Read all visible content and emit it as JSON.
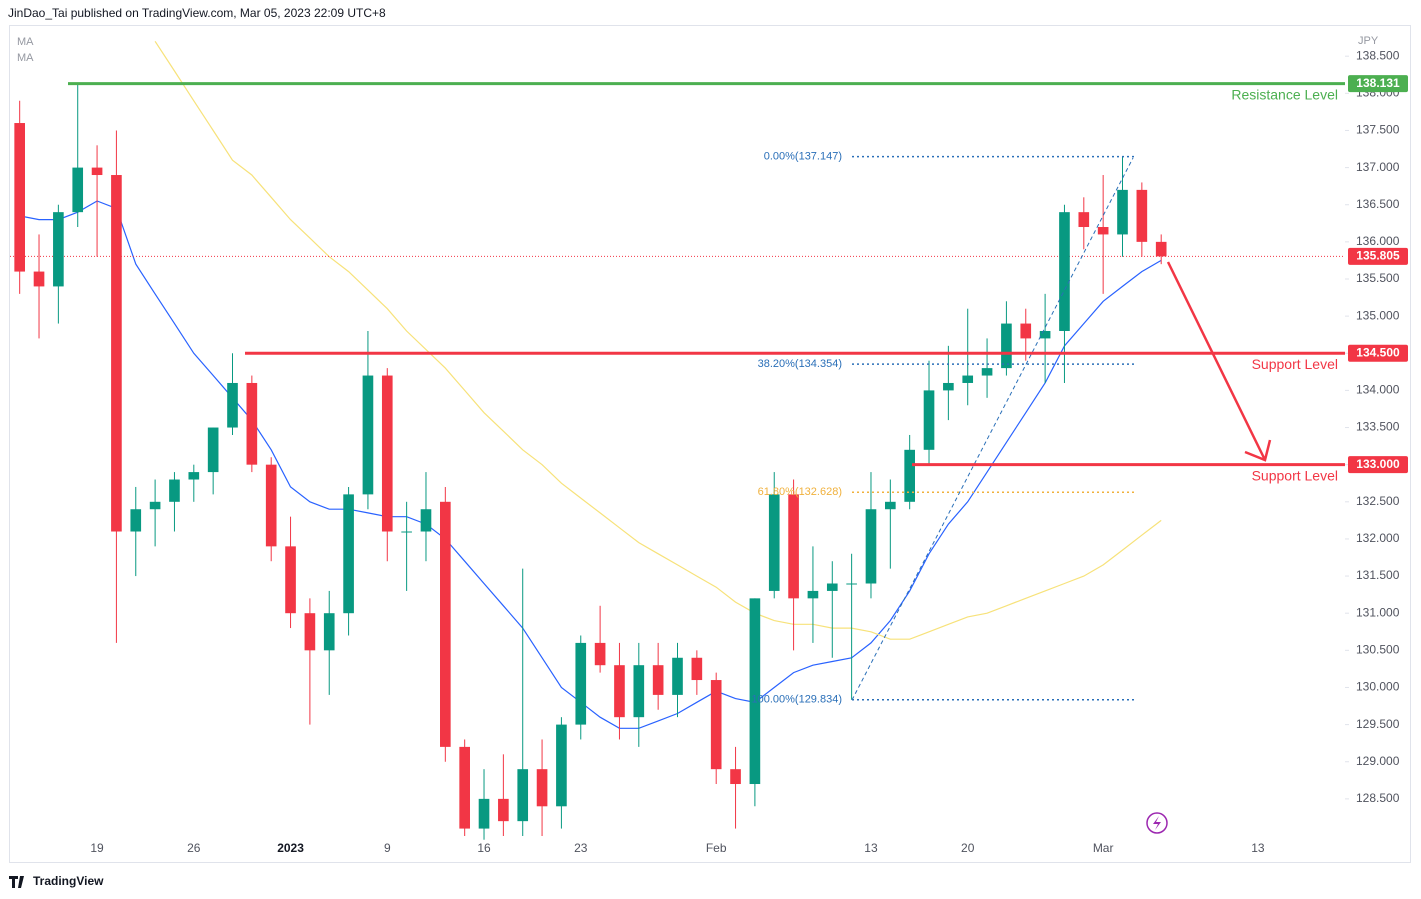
{
  "header": "JinDao_Tai published on TradingView.com, Mar 05, 2023 22:09 UTC+8",
  "brand": "TradingView",
  "chart_data": {
    "type": "candlestick",
    "currency": "JPY",
    "categories": [
      null,
      null,
      null,
      null,
      "19",
      null,
      null,
      null,
      null,
      "26",
      null,
      null,
      null,
      null,
      "2023",
      null,
      null,
      null,
      null,
      "9",
      null,
      null,
      null,
      null,
      "16",
      null,
      null,
      null,
      null,
      "23",
      null,
      null,
      null,
      null,
      null,
      null,
      "Feb",
      null,
      null,
      null,
      null,
      null,
      null,
      null,
      "13",
      null,
      null,
      null,
      null,
      "20",
      null,
      null,
      null,
      null,
      null,
      null,
      "Mar",
      null,
      null,
      null,
      null,
      null,
      null,
      null,
      "13",
      null,
      null,
      null,
      null
    ],
    "open": [
      137.6,
      135.6,
      135.4,
      136.4,
      137.0,
      136.9,
      132.1,
      132.4,
      132.5,
      132.8,
      132.9,
      133.5,
      134.1,
      133.0,
      131.9,
      131.0,
      130.5,
      131.0,
      132.6,
      134.2,
      132.1,
      132.1,
      132.5,
      129.2,
      128.1,
      128.5,
      128.2,
      128.9,
      128.4,
      129.5,
      130.6,
      130.3,
      129.6,
      130.3,
      129.9,
      130.4,
      130.1,
      128.9,
      128.7,
      131.3,
      132.6,
      131.2,
      131.3,
      131.4,
      131.4,
      132.4,
      132.5,
      133.2,
      134.0,
      134.1,
      134.2,
      134.3,
      134.9,
      134.7,
      134.8,
      136.4,
      136.2,
      136.1,
      136.7,
      136.0,
      null,
      null,
      null,
      null,
      null,
      null,
      null,
      null,
      null
    ],
    "high": [
      137.9,
      136.1,
      136.5,
      138.131,
      137.3,
      137.5,
      132.7,
      132.8,
      132.9,
      133.0,
      133.5,
      134.5,
      134.2,
      133.1,
      132.3,
      131.2,
      131.3,
      132.7,
      134.8,
      134.3,
      132.5,
      132.9,
      132.7,
      129.3,
      128.9,
      129.1,
      131.6,
      129.3,
      129.6,
      130.7,
      131.1,
      130.6,
      130.6,
      130.6,
      130.6,
      130.5,
      130.2,
      129.2,
      131.2,
      132.9,
      132.8,
      131.9,
      131.7,
      131.8,
      132.9,
      132.8,
      133.4,
      134.4,
      134.6,
      135.1,
      134.7,
      135.2,
      135.1,
      135.3,
      136.5,
      136.6,
      136.9,
      137.147,
      136.8,
      136.1,
      null,
      null,
      null,
      null,
      null,
      null,
      null,
      null,
      null
    ],
    "low": [
      135.3,
      134.7,
      134.9,
      136.2,
      135.8,
      130.6,
      131.5,
      131.9,
      132.1,
      132.5,
      132.6,
      133.4,
      132.9,
      131.7,
      130.8,
      129.5,
      129.9,
      130.7,
      132.4,
      131.7,
      131.3,
      131.7,
      129.0,
      128.0,
      127.95,
      128.0,
      128.0,
      128.0,
      128.1,
      129.3,
      130.2,
      129.3,
      129.2,
      129.7,
      129.6,
      129.9,
      128.7,
      128.1,
      128.4,
      131.2,
      130.5,
      130.6,
      130.4,
      129.834,
      131.2,
      131.6,
      132.4,
      133.0,
      133.6,
      133.8,
      133.9,
      134.2,
      134.4,
      134.1,
      134.1,
      135.9,
      135.3,
      135.8,
      135.8,
      135.7,
      null,
      null,
      null,
      null,
      null,
      null,
      null,
      null,
      null
    ],
    "close": [
      135.6,
      135.4,
      136.4,
      137.0,
      136.9,
      132.1,
      132.4,
      132.5,
      132.8,
      132.9,
      133.5,
      134.1,
      133.0,
      131.9,
      131.0,
      130.5,
      131.0,
      132.6,
      134.2,
      132.1,
      132.1,
      132.4,
      129.2,
      128.1,
      128.5,
      128.2,
      128.9,
      128.4,
      129.5,
      130.6,
      130.3,
      129.6,
      130.3,
      129.9,
      130.4,
      130.1,
      128.9,
      128.7,
      131.2,
      132.6,
      131.2,
      131.3,
      131.4,
      131.4,
      132.4,
      132.5,
      133.2,
      134.0,
      134.1,
      134.2,
      134.3,
      134.9,
      134.7,
      134.8,
      136.4,
      136.2,
      136.1,
      136.7,
      136.0,
      135.805,
      null,
      null,
      null,
      null,
      null,
      null,
      null,
      null,
      null
    ],
    "up_color": "#089981",
    "down_color": "#f23645",
    "series": [
      {
        "name": "MA",
        "color": "#2962ff",
        "values": [
          136.35,
          136.3,
          136.3,
          136.4,
          136.55,
          136.45,
          135.7,
          135.3,
          134.9,
          134.5,
          134.2,
          133.9,
          133.6,
          133.2,
          132.7,
          132.5,
          132.4,
          132.4,
          132.35,
          132.3,
          132.3,
          132.2,
          132.0,
          131.7,
          131.4,
          131.1,
          130.8,
          130.4,
          130.0,
          129.8,
          129.6,
          129.45,
          129.45,
          129.55,
          129.65,
          129.8,
          129.95,
          129.85,
          129.8,
          130.0,
          130.2,
          130.3,
          130.35,
          130.4,
          130.6,
          130.9,
          131.3,
          131.8,
          132.2,
          132.5,
          132.9,
          133.3,
          133.7,
          134.1,
          134.6,
          134.9,
          135.2,
          135.4,
          135.6,
          135.75,
          null,
          null,
          null,
          null,
          null,
          null,
          null,
          null,
          null
        ]
      },
      {
        "name": "MA",
        "color": "#f7e27a",
        "values": [
          null,
          null,
          null,
          null,
          null,
          null,
          null,
          138.7,
          138.3,
          137.9,
          137.5,
          137.1,
          136.9,
          136.6,
          136.3,
          136.05,
          135.8,
          135.6,
          135.35,
          135.1,
          134.8,
          134.55,
          134.3,
          134.0,
          133.7,
          133.45,
          133.2,
          133.0,
          132.75,
          132.55,
          132.35,
          132.15,
          131.95,
          131.8,
          131.65,
          131.5,
          131.35,
          131.15,
          131.0,
          130.9,
          130.85,
          130.85,
          130.8,
          130.8,
          130.75,
          130.65,
          130.65,
          130.75,
          130.85,
          130.95,
          131.0,
          131.1,
          131.2,
          131.3,
          131.4,
          131.5,
          131.65,
          131.85,
          132.05,
          132.25,
          null,
          null,
          null,
          null,
          null,
          null,
          null,
          null,
          null
        ]
      }
    ],
    "ylim": [
      127.65,
      138.92
    ],
    "yticks": [
      {
        "value": 128.5,
        "label": "128.500"
      },
      {
        "value": 129,
        "label": "129.000"
      },
      {
        "value": 129.5,
        "label": "129.500"
      },
      {
        "value": 130,
        "label": "130.000"
      },
      {
        "value": 130.5,
        "label": "130.500"
      },
      {
        "value": 131,
        "label": "131.000"
      },
      {
        "value": 131.5,
        "label": "131.500"
      },
      {
        "value": 132,
        "label": "132.000"
      },
      {
        "value": 132.5,
        "label": "132.500"
      },
      {
        "value": 133,
        "label": "133.000"
      },
      {
        "value": 133.5,
        "label": "133.500"
      },
      {
        "value": 134,
        "label": "134.000"
      },
      {
        "value": 134.5,
        "label": "134.500"
      },
      {
        "value": 135,
        "label": "135.000"
      },
      {
        "value": 135.5,
        "label": "135.500"
      },
      {
        "value": 136,
        "label": "136.000"
      },
      {
        "value": 136.5,
        "label": "136.500"
      },
      {
        "value": 137,
        "label": "137.000"
      },
      {
        "value": 137.5,
        "label": "137.500"
      },
      {
        "value": 138,
        "label": "138.000"
      },
      {
        "value": 138.5,
        "label": "138.500"
      }
    ],
    "last_price": 135.805,
    "levels": [
      {
        "name": "Resistance Level",
        "value": 138.131,
        "color": "#4caf50"
      },
      {
        "name": "Support Level",
        "value": 134.5,
        "value_label": "134.500",
        "color": "#f23645"
      },
      {
        "name": "Support Level",
        "value": 133.0,
        "value_label": "133.000",
        "color": "#f23645"
      }
    ],
    "fib_levels": [
      {
        "value": 137.147,
        "label": "0.00%(137.147)",
        "color": "#2a6fb8"
      },
      {
        "value": 134.354,
        "label": "38.20%(134.354)",
        "color": "#2a6fb8"
      },
      {
        "value": 132.628,
        "label": "61.80%(132.628)",
        "color": "#f0b13d"
      },
      {
        "value": 129.834,
        "label": "100.00%(129.834)",
        "color": "#2a6fb8"
      }
    ]
  }
}
